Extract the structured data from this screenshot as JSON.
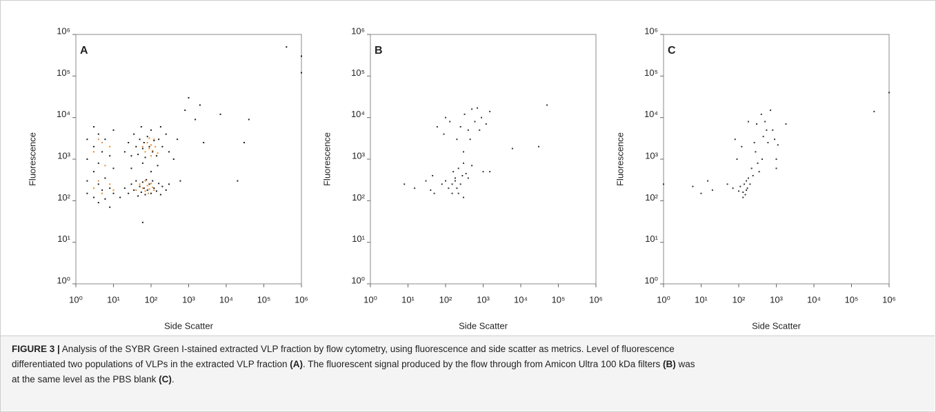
{
  "chart_data": [
    {
      "type": "scatter",
      "panel_label": "A",
      "x_label": "Side Scatter",
      "y_label": "Fluorescence",
      "xscale": "log",
      "yscale": "log",
      "xlim": [
        1,
        1000000
      ],
      "ylim": [
        1,
        1000000
      ],
      "xticks": [
        {
          "value": 1,
          "label": "10⁰"
        },
        {
          "value": 10,
          "label": "10¹"
        },
        {
          "value": 100,
          "label": "10²"
        },
        {
          "value": 1000,
          "label": "10³"
        },
        {
          "value": 10000,
          "label": "10⁴"
        },
        {
          "value": 100000,
          "label": "10⁵"
        },
        {
          "value": 1000000,
          "label": "10⁶"
        }
      ],
      "yticks": [
        {
          "value": 1,
          "label": "10⁰"
        },
        {
          "value": 10,
          "label": "10¹"
        },
        {
          "value": 100,
          "label": "10²"
        },
        {
          "value": 1000,
          "label": "10³"
        },
        {
          "value": 10000,
          "label": "10⁴"
        },
        {
          "value": 100000,
          "label": "10⁵"
        },
        {
          "value": 1000000,
          "label": "10⁶"
        }
      ],
      "series": [
        {
          "color": "#1a1a1a",
          "x": [
            2,
            2,
            2,
            2,
            3,
            3,
            3,
            3,
            4,
            4,
            4,
            4,
            5,
            5,
            6,
            6,
            6,
            8,
            8,
            8,
            10,
            10,
            10,
            15,
            20,
            25,
            30,
            35,
            40,
            45,
            50,
            55,
            60,
            65,
            70,
            75,
            80,
            90,
            100,
            110,
            120,
            140,
            160,
            180,
            200,
            250,
            300,
            20,
            25,
            30,
            35,
            40,
            45,
            50,
            55,
            60,
            65,
            70,
            80,
            90,
            100,
            110,
            120,
            140,
            160,
            180,
            200,
            250,
            300,
            30,
            60,
            100,
            150,
            400,
            600,
            500,
            1000,
            2000,
            2500,
            60,
            7000,
            20000,
            30000,
            40000,
            400000,
            1000000,
            1000000,
            1500,
            800
          ],
          "y": [
            300,
            150,
            1000,
            3000,
            120,
            500,
            2000,
            6000,
            90,
            250,
            800,
            4000,
            180,
            1500,
            110,
            350,
            3000,
            70,
            200,
            1200,
            150,
            600,
            5000,
            120,
            200,
            150,
            250,
            180,
            300,
            130,
            220,
            160,
            280,
            200,
            140,
            320,
            180,
            250,
            150,
            300,
            200,
            170,
            260,
            140,
            220,
            180,
            250,
            1500,
            2500,
            1200,
            4000,
            2000,
            1300,
            3000,
            6000,
            1800,
            2500,
            1100,
            3500,
            2000,
            5000,
            1500,
            2800,
            1200,
            3000,
            6000,
            2000,
            4000,
            1500,
            600,
            800,
            500,
            700,
            1000,
            300,
            3000,
            30000,
            20000,
            2500,
            30,
            12000,
            300,
            2500,
            9000,
            500000,
            300000,
            120000,
            9000,
            15000
          ]
        },
        {
          "color": "#e8892a",
          "x": [
            3,
            3,
            4,
            4,
            5,
            5,
            6,
            8,
            8,
            10,
            40,
            50,
            60,
            70,
            80,
            90,
            100,
            110,
            120,
            70,
            85,
            60,
            70,
            80,
            90,
            100,
            110,
            120,
            130,
            90,
            150,
            100
          ],
          "y": [
            200,
            1500,
            300,
            3000,
            150,
            2500,
            700,
            250,
            2000,
            180,
            180,
            250,
            200,
            170,
            230,
            190,
            260,
            210,
            180,
            300,
            150,
            2000,
            1500,
            2500,
            1800,
            2200,
            1600,
            3000,
            2000,
            3200,
            1400,
            1200
          ]
        }
      ]
    },
    {
      "type": "scatter",
      "panel_label": "B",
      "x_label": "Side Scatter",
      "y_label": "Fluorescence",
      "xscale": "log",
      "yscale": "log",
      "xlim": [
        1,
        1000000
      ],
      "ylim": [
        1,
        1000000
      ],
      "xticks": [
        {
          "value": 1,
          "label": "10⁰"
        },
        {
          "value": 10,
          "label": "10¹"
        },
        {
          "value": 100,
          "label": "10²"
        },
        {
          "value": 1000,
          "label": "10³"
        },
        {
          "value": 10000,
          "label": "10⁴"
        },
        {
          "value": 100000,
          "label": "10⁵"
        },
        {
          "value": 1000000,
          "label": "10⁶"
        }
      ],
      "yticks": [
        {
          "value": 1,
          "label": "10⁰"
        },
        {
          "value": 10,
          "label": "10¹"
        },
        {
          "value": 100,
          "label": "10²"
        },
        {
          "value": 1000,
          "label": "10³"
        },
        {
          "value": 10000,
          "label": "10⁴"
        },
        {
          "value": 100000,
          "label": "10⁵"
        },
        {
          "value": 1000000,
          "label": "10⁶"
        }
      ],
      "series": [
        {
          "color": "#333333",
          "x": [
            8,
            15,
            30,
            40,
            45,
            50,
            60,
            80,
            90,
            100,
            100,
            120,
            130,
            150,
            160,
            180,
            200,
            200,
            220,
            250,
            250,
            280,
            300,
            300,
            320,
            350,
            400,
            400,
            450,
            500,
            500,
            600,
            700,
            800,
            900,
            1000,
            1200,
            1500,
            1500,
            6000,
            30000,
            50000,
            150,
            220,
            300,
            180
          ],
          "y": [
            250,
            200,
            300,
            180,
            400,
            150,
            6000,
            250,
            4000,
            10000,
            300,
            200,
            8000,
            250,
            500,
            350,
            200,
            3000,
            600,
            250,
            6000,
            400,
            1500,
            800,
            12000,
            450,
            350,
            5000,
            3000,
            700,
            16000,
            8000,
            17000,
            5000,
            10000,
            500,
            7000,
            14000,
            500,
            1800,
            2000,
            20000,
            150,
            150,
            120,
            300
          ]
        }
      ]
    },
    {
      "type": "scatter",
      "panel_label": "C",
      "x_label": "Side Scatter",
      "y_label": "Fluorescence",
      "xscale": "log",
      "yscale": "log",
      "xlim": [
        1,
        1000000
      ],
      "ylim": [
        1,
        1000000
      ],
      "xticks": [
        {
          "value": 1,
          "label": "10⁰"
        },
        {
          "value": 10,
          "label": "10¹"
        },
        {
          "value": 100,
          "label": "10²"
        },
        {
          "value": 1000,
          "label": "10³"
        },
        {
          "value": 10000,
          "label": "10⁴"
        },
        {
          "value": 100000,
          "label": "10⁵"
        },
        {
          "value": 1000000,
          "label": "10⁶"
        }
      ],
      "yticks": [
        {
          "value": 1,
          "label": "10⁰"
        },
        {
          "value": 10,
          "label": "10¹"
        },
        {
          "value": 100,
          "label": "10²"
        },
        {
          "value": 1000,
          "label": "10³"
        },
        {
          "value": 10000,
          "label": "10⁴"
        },
        {
          "value": 100000,
          "label": "10⁵"
        },
        {
          "value": 1000000,
          "label": "10⁶"
        }
      ],
      "series": [
        {
          "color": "#333333",
          "x": [
            1,
            6,
            10,
            15,
            20,
            50,
            70,
            80,
            90,
            100,
            110,
            120,
            130,
            130,
            140,
            150,
            160,
            160,
            170,
            180,
            180,
            200,
            220,
            240,
            260,
            280,
            300,
            320,
            350,
            400,
            420,
            450,
            500,
            550,
            600,
            700,
            800,
            900,
            1000,
            1000,
            1100,
            1800,
            400000,
            1000000
          ],
          "y": [
            250,
            220,
            150,
            300,
            180,
            250,
            200,
            3000,
            1000,
            170,
            220,
            2000,
            160,
            120,
            250,
            140,
            300,
            180,
            200,
            8000,
            350,
            250,
            600,
            400,
            2500,
            1500,
            7000,
            800,
            500,
            12000,
            1000,
            3500,
            8000,
            5000,
            2500,
            15000,
            5000,
            3000,
            1000,
            600,
            2200,
            7000,
            14000,
            40000
          ]
        }
      ]
    }
  ],
  "caption": {
    "lines": [
      [
        {
          "text": "FIGURE 3 |",
          "bold": true
        },
        {
          "text": " Analysis of the SYBR Green I-stained extracted VLP fraction by flow cytometry, using fluorescence and side scatter as metrics. Level of fluorescence",
          "bold": false
        }
      ],
      [
        {
          "text": "differentiated two populations of VLPs in the extracted VLP fraction ",
          "bold": false
        },
        {
          "text": "(A)",
          "bold": true
        },
        {
          "text": ". The fluorescent signal produced by the flow through from Amicon Ultra 100 kDa filters ",
          "bold": false
        },
        {
          "text": "(B)",
          "bold": true
        },
        {
          "text": " was",
          "bold": false
        }
      ],
      [
        {
          "text": "at the same level as the PBS blank ",
          "bold": false
        },
        {
          "text": "(C)",
          "bold": true
        },
        {
          "text": ".",
          "bold": false
        }
      ]
    ]
  }
}
